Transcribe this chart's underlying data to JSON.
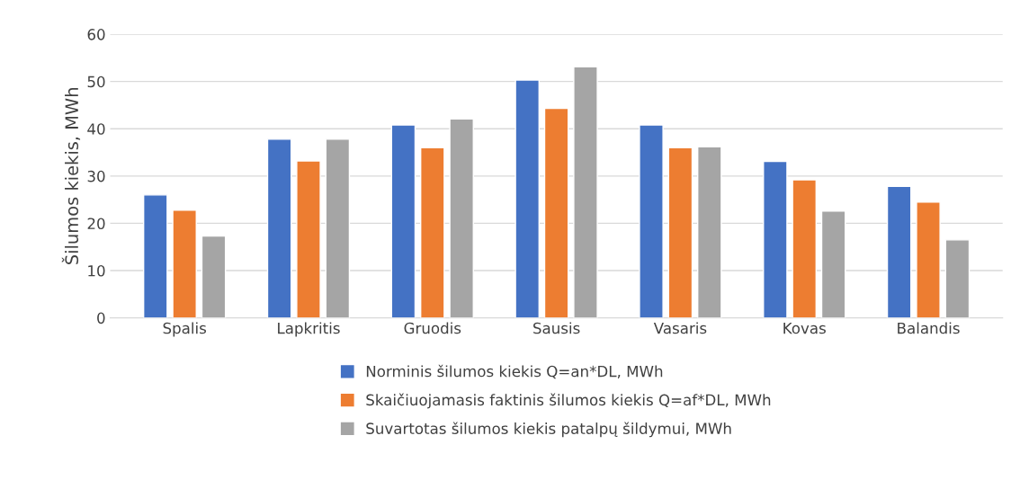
{
  "chart_data": {
    "type": "bar",
    "ylabel": "Šilumos kiekis, MWh",
    "categories": [
      "Spalis",
      "Lapkritis",
      "Gruodis",
      "Sausis",
      "Vasaris",
      "Kovas",
      "Balandis"
    ],
    "series": [
      {
        "name": "Norminis šilumos kiekis Q=an*DL, MWh",
        "color": "#4472c4",
        "values": [
          26,
          37.8,
          40.8,
          50.3,
          40.8,
          33.1,
          27.8
        ]
      },
      {
        "name": "Skaičiuojamasis faktinis šilumos kiekis Q=af*DL, MWh",
        "color": "#ed7d31",
        "values": [
          22.8,
          33.2,
          36,
          44.3,
          36,
          29.2,
          24.5
        ]
      },
      {
        "name": "Suvartotas šilumos kiekis patalpų šildymui, MWh",
        "color": "#a5a5a5",
        "values": [
          17.3,
          37.8,
          42.1,
          53.1,
          36.2,
          22.6,
          16.5
        ]
      }
    ],
    "ylim": [
      0,
      60
    ],
    "yticks": [
      0,
      10,
      20,
      30,
      40,
      50,
      60
    ],
    "grid": "y",
    "legend": "bottom"
  }
}
